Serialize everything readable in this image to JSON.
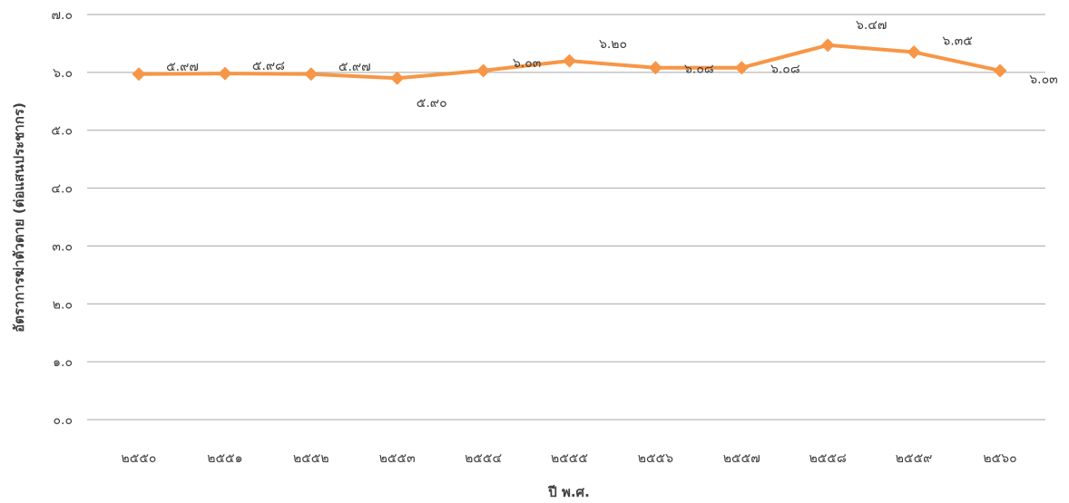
{
  "chart_data": {
    "type": "line",
    "title": "",
    "xlabel": "ปี พ.ศ.",
    "ylabel": "อัตราการฆ่าตัวตาย (ต่อแสนประชากร)",
    "categories": [
      "๒๕๕๐",
      "๒๕๕๑",
      "๒๕๕๒",
      "๒๕๕๓",
      "๒๕๕๔",
      "๒๕๕๕",
      "๒๕๕๖",
      "๒๕๕๗",
      "๒๕๕๘",
      "๒๕๕๙",
      "๒๕๖๐"
    ],
    "series": [
      {
        "values": [
          5.97,
          5.98,
          5.97,
          5.9,
          6.03,
          6.2,
          6.08,
          6.08,
          6.47,
          6.35,
          6.03
        ],
        "data_labels": [
          "๕.๙๗",
          "๕.๙๘",
          "๕.๙๗",
          "๕.๙๐",
          "๖.๐๓",
          "๖.๒๐",
          "๖.๐๘",
          "๖.๐๘",
          "๖.๔๗",
          "๖.๓๕",
          "๖.๐๓"
        ]
      }
    ],
    "ylim": [
      0,
      7
    ],
    "yticks": [
      0,
      1,
      2,
      3,
      4,
      5,
      6,
      7
    ],
    "ytick_labels": [
      "๐.๐",
      "๑.๐",
      "๒.๐",
      "๓.๐",
      "๔.๐",
      "๕.๐",
      "๖.๐",
      "๗.๐"
    ],
    "grid": true,
    "legend": "none",
    "line_color": "#F79646",
    "grid_color": "#A6A6A6"
  }
}
